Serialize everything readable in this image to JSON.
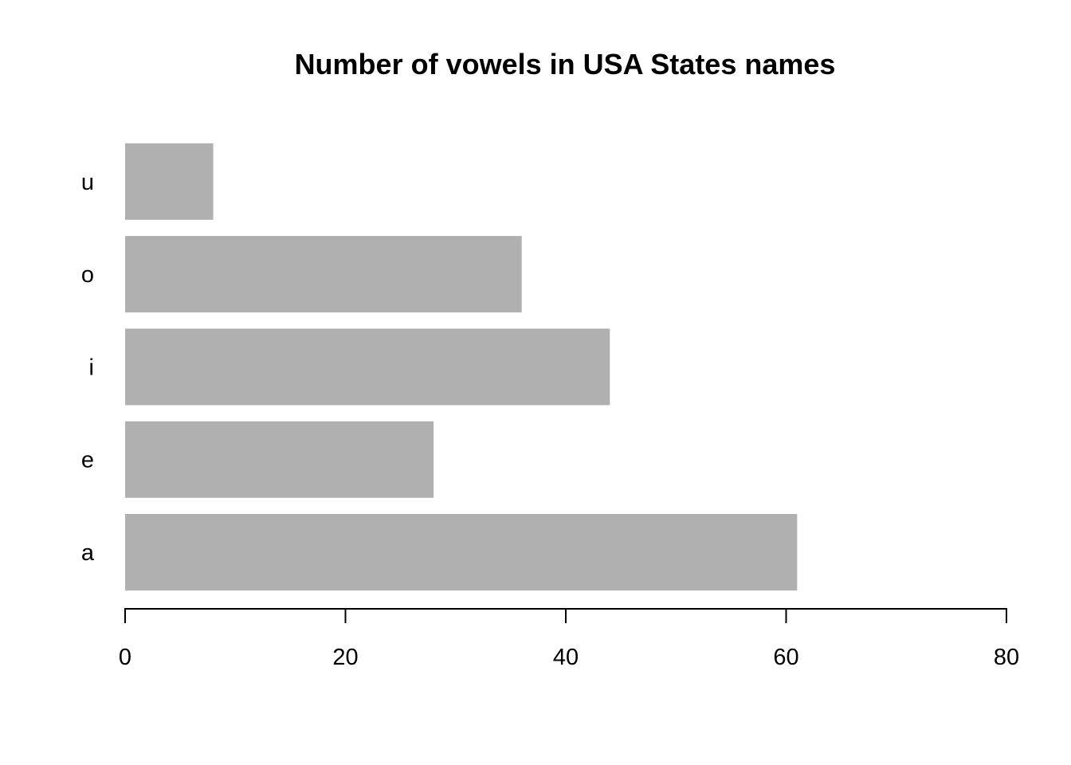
{
  "chart_data": {
    "type": "bar",
    "orientation": "horizontal",
    "title": "Number of vowels in USA States names",
    "xlabel": "",
    "ylabel": "",
    "categories": [
      "a",
      "e",
      "i",
      "o",
      "u"
    ],
    "values": [
      61,
      28,
      44,
      36,
      8
    ],
    "xlim": [
      0,
      80
    ],
    "xticks": [
      0,
      20,
      40,
      60,
      80
    ],
    "bar_color": "#b0b0b0",
    "grid": false,
    "legend": "none"
  }
}
